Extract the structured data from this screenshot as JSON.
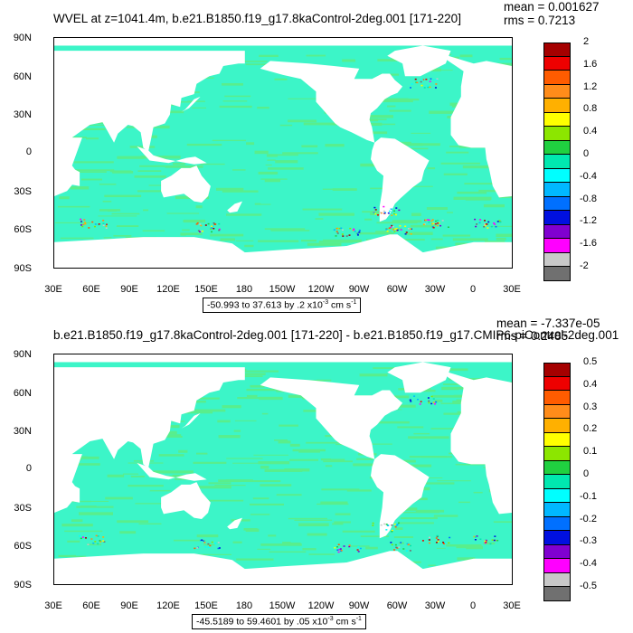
{
  "panels": [
    {
      "title": "WVEL at z=1041.4m, b.e21.B1850.f19_g17.8kaControl-2deg.001 [171-220]",
      "mean": "mean = 0.001627",
      "rms": "rms = 0.7213",
      "range": {
        "text": "-50.993 to 37.613 by .2 x10",
        "exp": "-3",
        "unit": " cm s",
        "uexp": "-1"
      },
      "colorbar_labels": [
        "2",
        "1.6",
        "1.2",
        "0.8",
        "0.4",
        "0",
        "-0.4",
        "-0.8",
        "-1.2",
        "-1.6",
        "-2"
      ]
    },
    {
      "title": "b.e21.B1850.f19_g17.8kaControl-2deg.001 [171-220] - b.e21.B1850.f19_g17.CMIP6-piControl-2deg.001",
      "mean": "mean = -7.337e-05",
      "rms": "rms = 0.2485",
      "range": {
        "text": "-45.5189 to 59.4601 by .05 x10",
        "exp": "-3",
        "unit": " cm s",
        "uexp": "-1"
      },
      "colorbar_labels": [
        "0.5",
        "0.4",
        "0.3",
        "0.2",
        "0.1",
        "0",
        "-0.1",
        "-0.2",
        "-0.3",
        "-0.4",
        "-0.5"
      ]
    }
  ],
  "lat_labels": [
    "90N",
    "60N",
    "30N",
    "0",
    "30S",
    "60S",
    "90S"
  ],
  "lon_labels": [
    "30E",
    "60E",
    "90E",
    "120E",
    "150E",
    "180",
    "150W",
    "120W",
    "90W",
    "60W",
    "30W",
    "0",
    "30E"
  ],
  "colors": {
    "palette": [
      "#a50000",
      "#ee0000",
      "#ff5c00",
      "#ff8c1a",
      "#ffb000",
      "#ffff00",
      "#8ce600",
      "#20d040",
      "#00e8b0",
      "#00ffff",
      "#00b8ff",
      "#0070ff",
      "#0010e0",
      "#8000d0",
      "#ff00ff",
      "#c8c8c8",
      "#707070"
    ],
    "ocean_main": "#3cf5c8",
    "ocean_alt": "#59ee8c"
  }
}
